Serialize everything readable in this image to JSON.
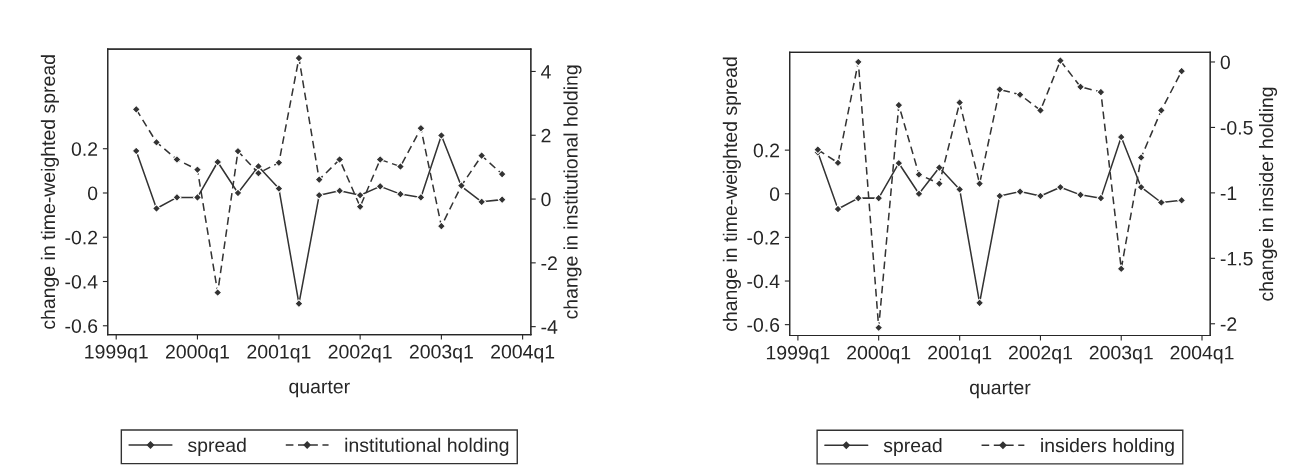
{
  "chart_data": [
    {
      "type": "line",
      "x": [
        "1999-04",
        "1999-07",
        "1999-10",
        "2000-01",
        "2000-04",
        "2000-07",
        "2000-10",
        "2001-01",
        "2001-04",
        "2001-07",
        "2001-10",
        "2002-01",
        "2002-04",
        "2002-07",
        "2002-10",
        "2003-01",
        "2003-04",
        "2003-07",
        "2003-10"
      ],
      "series": [
        {
          "name": "spread",
          "color": "#333333",
          "line_style": "solid",
          "values": [
            0.19,
            -0.07,
            -0.02,
            -0.02,
            0.14,
            0.0,
            0.12,
            0.02,
            -0.5,
            -0.01,
            0.01,
            -0.01,
            0.03,
            -0.005,
            -0.02,
            0.26,
            0.03,
            -0.04,
            -0.03
          ]
        },
        {
          "name": "institutional holding",
          "color": "#333333",
          "line_style": "dashed",
          "axis": "y2",
          "values": [
            2.81,
            1.78,
            1.24,
            0.92,
            -2.93,
            1.5,
            0.81,
            1.14,
            4.42,
            0.61,
            1.24,
            -0.24,
            1.24,
            1.02,
            2.22,
            -0.85,
            0.42,
            1.36,
            0.78
          ]
        }
      ],
      "marker": "diamond",
      "xlim": [
        "1998-11-24",
        "2004-02-07"
      ],
      "xticks": [
        {
          "value": "1999-01",
          "label": "1999q1"
        },
        {
          "value": "2000-01",
          "label": "2000q1"
        },
        {
          "value": "2001-01",
          "label": "2001q1"
        },
        {
          "value": "2002-01",
          "label": "2002q1"
        },
        {
          "value": "2003-01",
          "label": "2003q1"
        },
        {
          "value": "2004-01",
          "label": "2004q1"
        }
      ],
      "ylim": [
        -0.64,
        0.65
      ],
      "yticks": [
        {
          "value": -0.6,
          "label": "-0.6"
        },
        {
          "value": -0.4,
          "label": "-0.4"
        },
        {
          "value": -0.2,
          "label": "-0.2"
        },
        0,
        0.2
      ],
      "y2lim": [
        -4.25,
        4.7
      ],
      "y2ticks": [
        {
          "value": -4,
          "label": "-4"
        },
        {
          "value": -2,
          "label": "-2"
        },
        0,
        2,
        4
      ],
      "xlabel": "quarter",
      "ylabel": "change in time-weighted spread",
      "y2label": "change in institutional holding",
      "legend": "bottom",
      "grid": false
    },
    {
      "type": "line",
      "x": [
        "1999-04",
        "1999-07",
        "1999-10",
        "2000-01",
        "2000-04",
        "2000-07",
        "2000-10",
        "2001-01",
        "2001-04",
        "2001-07",
        "2001-10",
        "2002-01",
        "2002-04",
        "2002-07",
        "2002-10",
        "2003-01",
        "2003-04",
        "2003-07",
        "2003-10"
      ],
      "series": [
        {
          "name": "spread",
          "color": "#333333",
          "line_style": "solid",
          "values": [
            0.19,
            -0.07,
            -0.02,
            -0.02,
            0.14,
            0.0,
            0.12,
            0.02,
            -0.5,
            -0.01,
            0.01,
            -0.01,
            0.03,
            -0.005,
            -0.02,
            0.26,
            0.03,
            -0.04,
            -0.03
          ]
        },
        {
          "name": "insiders holding",
          "color": "#333333",
          "line_style": "dashed",
          "axis": "y2",
          "values": [
            -0.67,
            -0.77,
            0.0,
            -2.03,
            -0.33,
            -0.86,
            -0.93,
            -0.31,
            -0.93,
            -0.21,
            -0.25,
            -0.37,
            0.01,
            -0.19,
            -0.23,
            -1.58,
            -0.73,
            -0.37,
            -0.07
          ]
        }
      ],
      "marker": "diamond",
      "xlim": [
        "1998-11-25",
        "2004-02-07"
      ],
      "xticks": [
        {
          "value": "1999-01",
          "label": "1999q1"
        },
        {
          "value": "2000-01",
          "label": "2000q1"
        },
        {
          "value": "2001-01",
          "label": "2001q1"
        },
        {
          "value": "2002-01",
          "label": "2002q1"
        },
        {
          "value": "2003-01",
          "label": "2003q1"
        },
        {
          "value": "2004-01",
          "label": "2004q1"
        }
      ],
      "ylim": [
        -0.65,
        0.648
      ],
      "yticks": [
        {
          "value": -0.6,
          "label": "-0.6"
        },
        {
          "value": -0.4,
          "label": "-0.4"
        },
        {
          "value": -0.2,
          "label": "-0.2"
        },
        0,
        0.2
      ],
      "y2lim": [
        -2.09,
        0.073
      ],
      "y2ticks": [
        {
          "value": -2,
          "label": "-2"
        },
        {
          "value": -1.5,
          "label": "-1.5"
        },
        {
          "value": -1,
          "label": "-1"
        },
        {
          "value": -0.5,
          "label": "-0.5"
        },
        0
      ],
      "xlabel": "quarter",
      "ylabel": "change in time-weighted spread",
      "y2label": "change in insider holding",
      "legend": "bottom",
      "grid": false
    }
  ]
}
